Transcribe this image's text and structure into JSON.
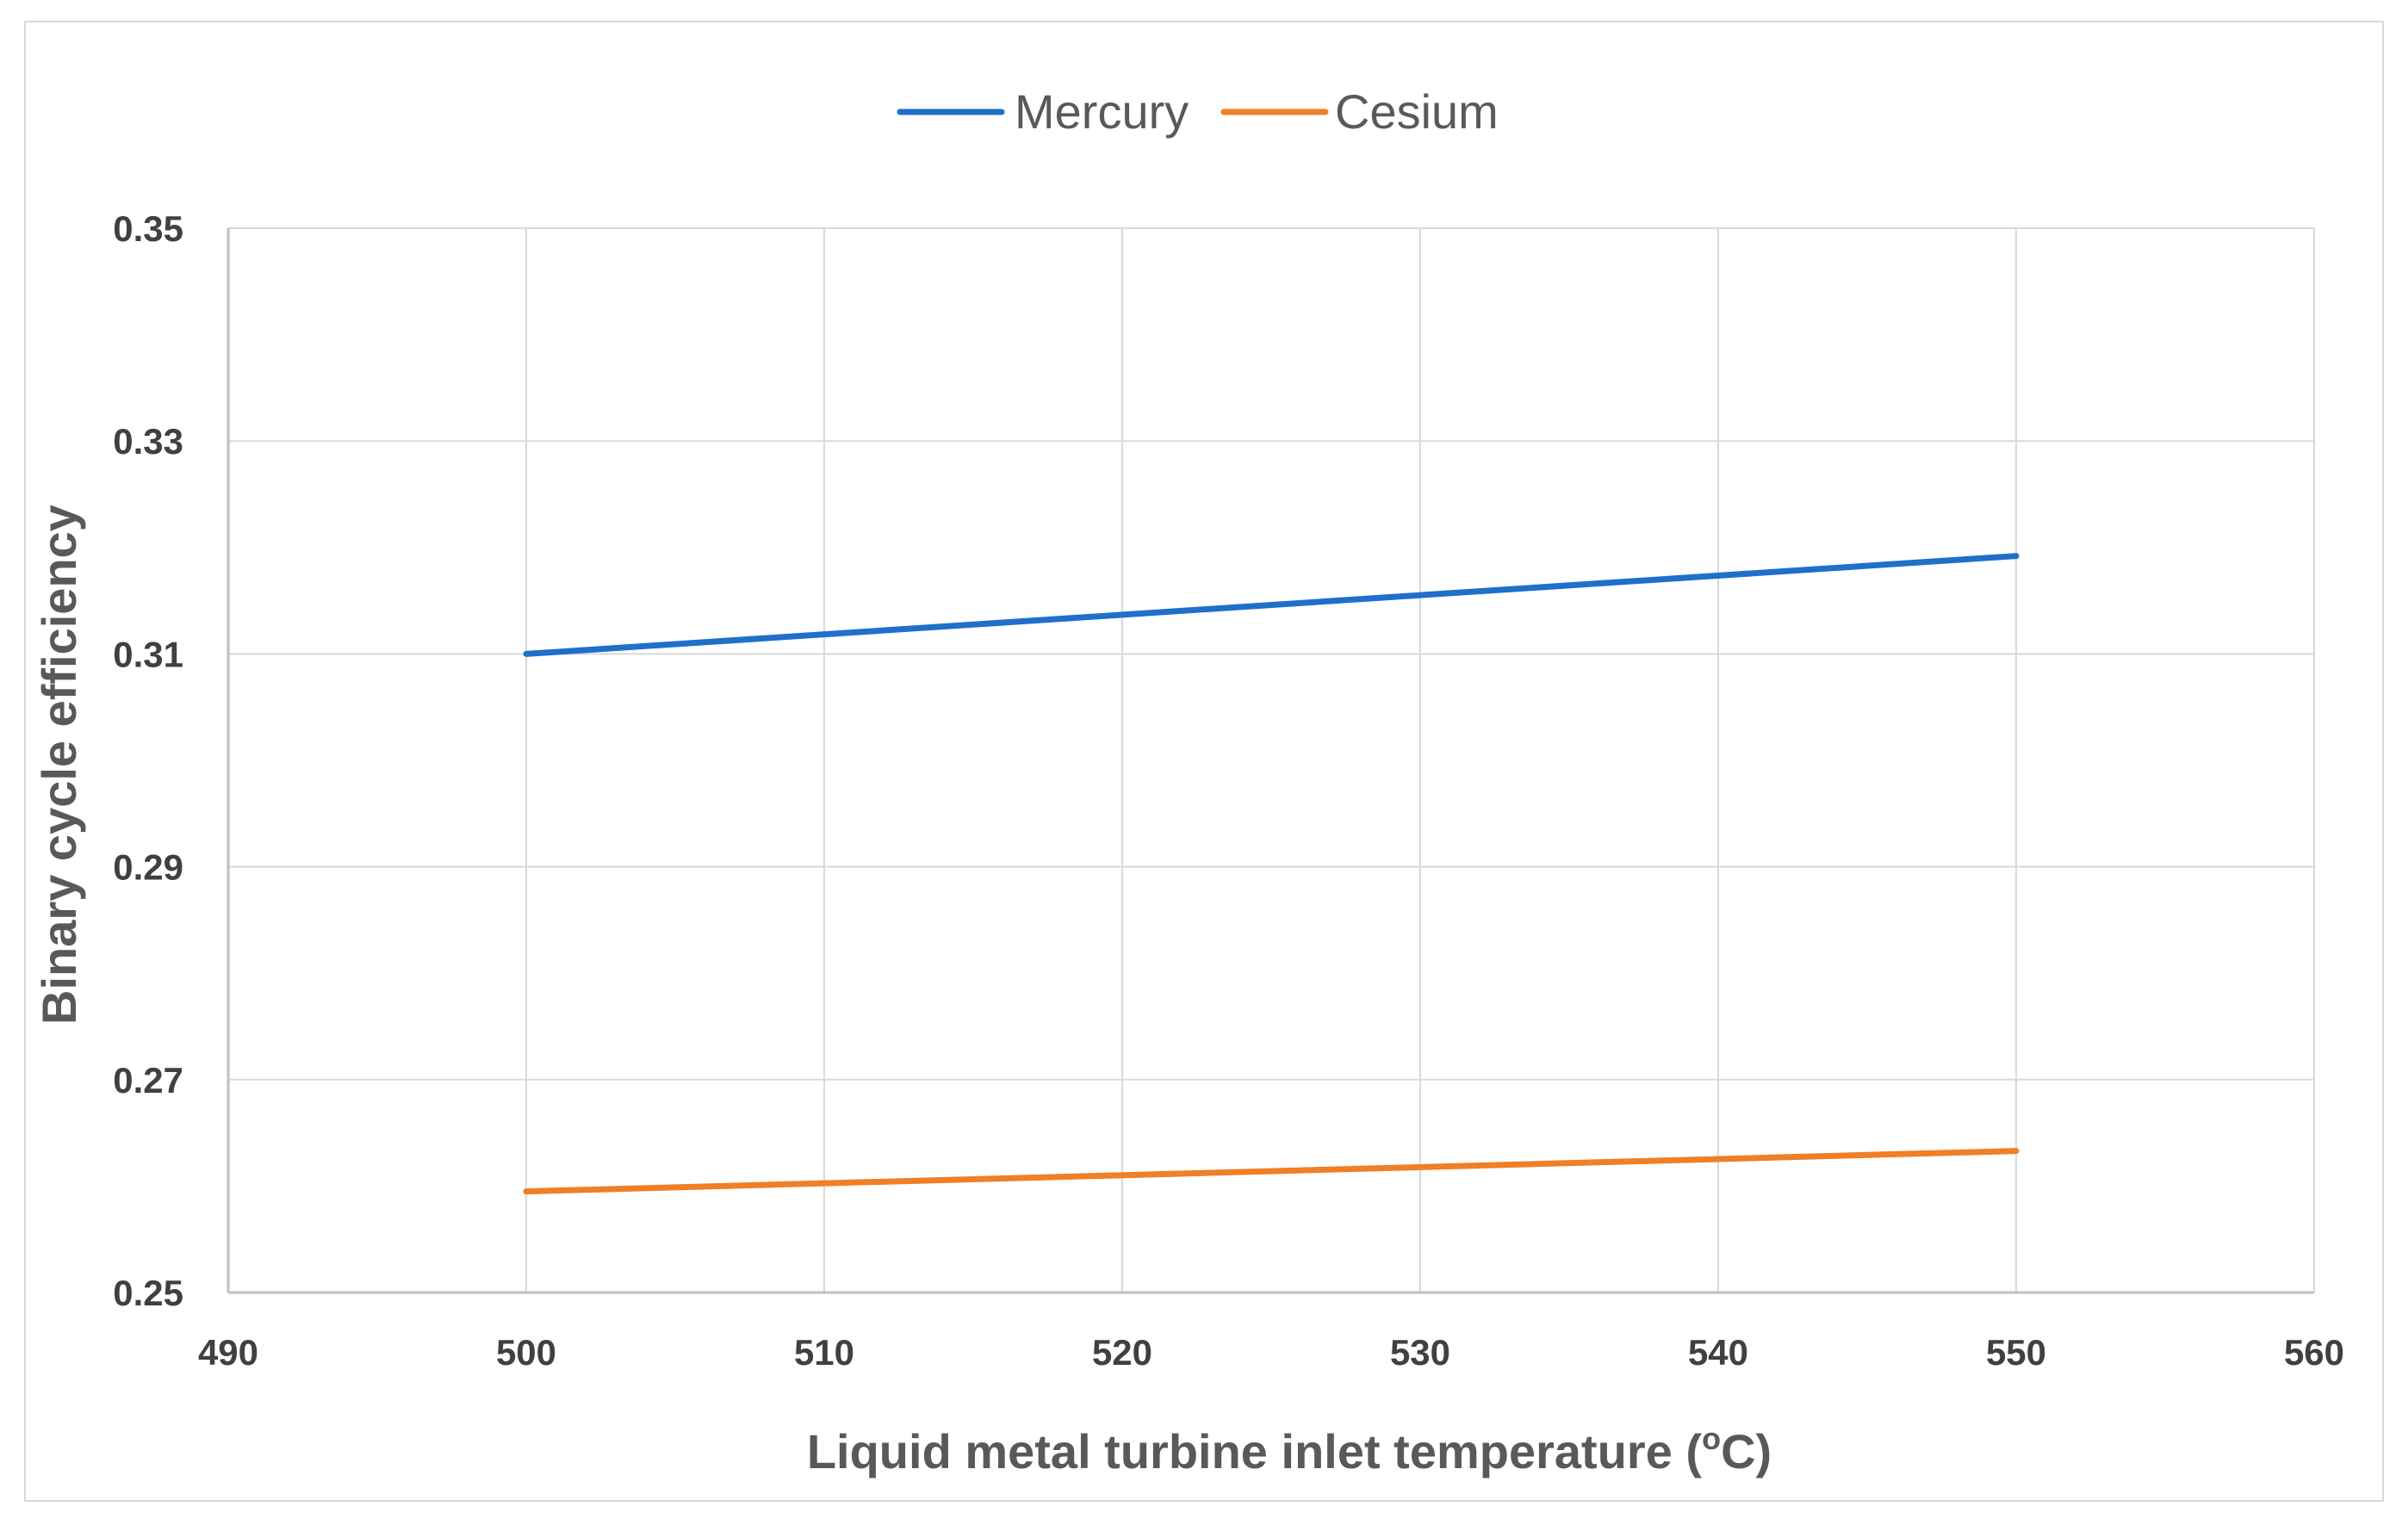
{
  "chart_data": {
    "type": "line",
    "xlabel": "Liquid metal turbine inlet temperature (",
    "xlabel_sup": "o",
    "xlabel_suffix": "C)",
    "ylabel": "Binary cycle efficiency",
    "xlim": [
      490,
      560
    ],
    "ylim": [
      0.25,
      0.35
    ],
    "x_ticks": [
      "490",
      "500",
      "510",
      "520",
      "530",
      "540",
      "550",
      "560"
    ],
    "y_ticks": [
      "0.25",
      "0.27",
      "0.29",
      "0.31",
      "0.33",
      "0.35"
    ],
    "grid": true,
    "legend_position": "top",
    "series": [
      {
        "name": "Mercury",
        "color": "#1f6fcb",
        "x": [
          500,
          550
        ],
        "y": [
          0.31,
          0.3192
        ]
      },
      {
        "name": "Cesium",
        "color": "#f07f26",
        "x": [
          500,
          550
        ],
        "y": [
          0.2595,
          0.2633
        ]
      }
    ]
  }
}
